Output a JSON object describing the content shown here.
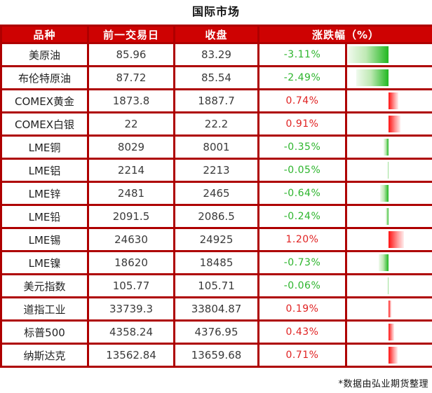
{
  "title": "国际市场",
  "footer": {
    "note": "*数据由弘业期货整理"
  },
  "colors": {
    "border": "#AE0000",
    "header_bg": "#CE0202",
    "header_text": "#FFFFFF",
    "title_text": "#141414",
    "cell_text": "#3A3A3A",
    "negative_text": "#2DB52D",
    "positive_text": "#E02222",
    "negative_bar": "#21B821",
    "positive_bar": "#FF1111"
  },
  "table": {
    "headers": [
      "品种",
      "前一交易日",
      "收盘",
      "涨跌幅（%）"
    ],
    "rows": [
      {
        "name": "美原油",
        "prev": "85.96",
        "close": "83.29",
        "change_pct": -3.11,
        "change_label": "-3.11%"
      },
      {
        "name": "布伦特原油",
        "prev": "87.72",
        "close": "85.54",
        "change_pct": -2.49,
        "change_label": "-2.49%"
      },
      {
        "name": "COMEX黄金",
        "prev": "1873.8",
        "close": "1887.7",
        "change_pct": 0.74,
        "change_label": "0.74%"
      },
      {
        "name": "COMEX白银",
        "prev": "22",
        "close": "22.2",
        "change_pct": 0.91,
        "change_label": "0.91%"
      },
      {
        "name": "LME铜",
        "prev": "8029",
        "close": "8001",
        "change_pct": -0.35,
        "change_label": "-0.35%"
      },
      {
        "name": "LME铝",
        "prev": "2214",
        "close": "2213",
        "change_pct": -0.05,
        "change_label": "-0.05%"
      },
      {
        "name": "LME锌",
        "prev": "2481",
        "close": "2465",
        "change_pct": -0.64,
        "change_label": "-0.64%"
      },
      {
        "name": "LME铅",
        "prev": "2091.5",
        "close": "2086.5",
        "change_pct": -0.24,
        "change_label": "-0.24%"
      },
      {
        "name": "LME锡",
        "prev": "24630",
        "close": "24925",
        "change_pct": 1.2,
        "change_label": "1.20%"
      },
      {
        "name": "LME镍",
        "prev": "18620",
        "close": "18485",
        "change_pct": -0.73,
        "change_label": "-0.73%"
      },
      {
        "name": "美元指数",
        "prev": "105.77",
        "close": "105.71",
        "change_pct": -0.06,
        "change_label": "-0.06%"
      },
      {
        "name": "道指工业",
        "prev": "33739.3",
        "close": "33804.87",
        "change_pct": 0.19,
        "change_label": "0.19%"
      },
      {
        "name": "标普500",
        "prev": "4358.24",
        "close": "4376.95",
        "change_pct": 0.43,
        "change_label": "0.43%"
      },
      {
        "name": "纳斯达克",
        "prev": "13562.84",
        "close": "13659.68",
        "change_pct": 0.71,
        "change_label": "0.71%"
      }
    ]
  },
  "chart_data": {
    "type": "bar",
    "orientation": "horizontal-diverging",
    "title": "国际市场",
    "value_label": "涨跌幅（%）",
    "categories": [
      "美原油",
      "布伦特原油",
      "COMEX黄金",
      "COMEX白银",
      "LME铜",
      "LME铝",
      "LME锌",
      "LME铅",
      "LME锡",
      "LME镍",
      "美元指数",
      "道指工业",
      "标普500",
      "纳斯达克"
    ],
    "values": [
      -3.11,
      -2.49,
      0.74,
      0.91,
      -0.35,
      -0.05,
      -0.64,
      -0.24,
      1.2,
      -0.73,
      -0.06,
      0.19,
      0.43,
      0.71
    ],
    "xlim": [
      -3.2,
      3.2
    ],
    "negative_color_meaning": "green bar extends left of axis for declines",
    "positive_color_meaning": "red bar extends right of axis for gains",
    "grid": false,
    "legend": false
  }
}
